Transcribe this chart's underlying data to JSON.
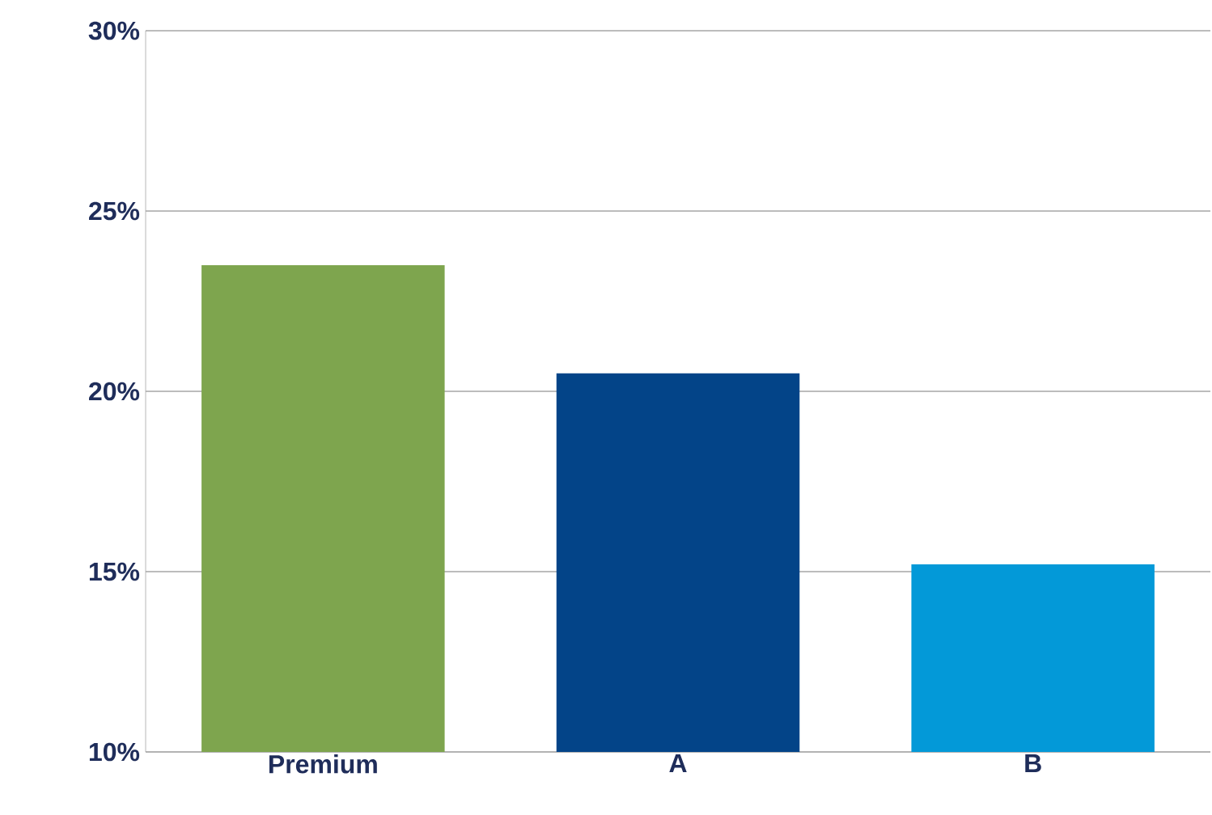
{
  "chart_data": {
    "type": "bar",
    "categories": [
      "Premium",
      "A",
      "B"
    ],
    "values": [
      23.5,
      20.5,
      15.2
    ],
    "colors": [
      "#7ea54e",
      "#034488",
      "#0399d8"
    ],
    "ylim": [
      10,
      30
    ],
    "yticks": [
      {
        "value": 10,
        "label": "10%"
      },
      {
        "value": 15,
        "label": "15%"
      },
      {
        "value": 20,
        "label": "20%"
      },
      {
        "value": 25,
        "label": "25%"
      },
      {
        "value": 30,
        "label": "30%"
      }
    ],
    "grid": "y"
  }
}
